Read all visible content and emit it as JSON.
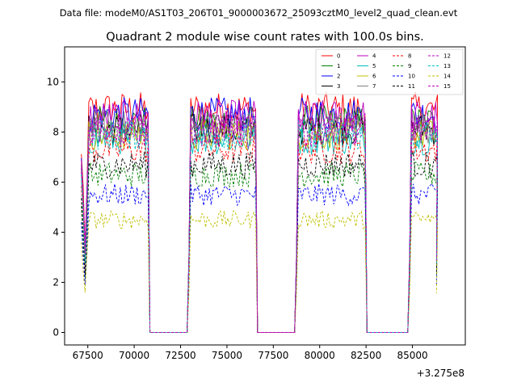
{
  "suptitle": "Data file: modeM0/AS1T03_206T01_9000003672_25093cztM0_level2_quad_clean.evt",
  "chart_data": {
    "type": "line",
    "title": "Quadrant 2 module wise count rates with 100.0s bins.",
    "xlabel": "",
    "ylabel": "",
    "x_offset_label": "+3.275e8",
    "xlim": [
      66250,
      87850
    ],
    "ylim": [
      -0.5,
      11.4
    ],
    "x_ticks": [
      {
        "value": 67500,
        "label": "67500"
      },
      {
        "value": 70000,
        "label": "70000"
      },
      {
        "value": 72500,
        "label": "72500"
      },
      {
        "value": 75000,
        "label": "75000"
      },
      {
        "value": 77500,
        "label": "77500"
      },
      {
        "value": 80000,
        "label": "80000"
      },
      {
        "value": 82500,
        "label": "82500"
      },
      {
        "value": 85000,
        "label": "85000"
      }
    ],
    "y_ticks": [
      {
        "value": 0,
        "label": "0"
      },
      {
        "value": 2,
        "label": "2"
      },
      {
        "value": 4,
        "label": "4"
      },
      {
        "value": 6,
        "label": "6"
      },
      {
        "value": 8,
        "label": "8"
      },
      {
        "value": 10,
        "label": "10"
      }
    ],
    "bin_width": 100,
    "segments": [
      {
        "start": 67100,
        "end": 70800,
        "dip_end": 67500
      },
      {
        "start": 70800,
        "end": 72900,
        "gap": true
      },
      {
        "start": 72900,
        "end": 76600
      },
      {
        "start": 76600,
        "end": 78700,
        "gap": true
      },
      {
        "start": 78700,
        "end": 82500
      },
      {
        "start": 82500,
        "end": 84800,
        "gap": true
      },
      {
        "start": 84800,
        "end": 86300
      }
    ],
    "legend_position": "upper right",
    "series": [
      {
        "name": "0",
        "color": "#ff0000",
        "dash": "solid",
        "level": 8.9
      },
      {
        "name": "1",
        "color": "#008000",
        "dash": "solid",
        "level": 8.4
      },
      {
        "name": "2",
        "color": "#0000ff",
        "dash": "solid",
        "level": 8.7
      },
      {
        "name": "3",
        "color": "#000000",
        "dash": "solid",
        "level": 8.1
      },
      {
        "name": "4",
        "color": "#bf00bf",
        "dash": "solid",
        "level": 8.6
      },
      {
        "name": "5",
        "color": "#00bfbf",
        "dash": "solid",
        "level": 7.7
      },
      {
        "name": "6",
        "color": "#bfbf00",
        "dash": "solid",
        "level": 7.9
      },
      {
        "name": "7",
        "color": "#808080",
        "dash": "solid",
        "level": 8.2
      },
      {
        "name": "8",
        "color": "#ff0000",
        "dash": "dashed",
        "level": 7.3
      },
      {
        "name": "9",
        "color": "#008000",
        "dash": "dashed",
        "level": 6.3
      },
      {
        "name": "10",
        "color": "#0000ff",
        "dash": "dashed",
        "level": 5.5
      },
      {
        "name": "11",
        "color": "#000000",
        "dash": "dashed",
        "level": 6.7
      },
      {
        "name": "12",
        "color": "#bf00bf",
        "dash": "dashed",
        "level": 8.0
      },
      {
        "name": "13",
        "color": "#00bfbf",
        "dash": "dashed",
        "level": 7.9
      },
      {
        "name": "14",
        "color": "#bfbf00",
        "dash": "dashed",
        "level": 4.5
      },
      {
        "name": "15",
        "color": "#bf00bf",
        "dash": "dashed",
        "level": 8.2
      }
    ]
  }
}
